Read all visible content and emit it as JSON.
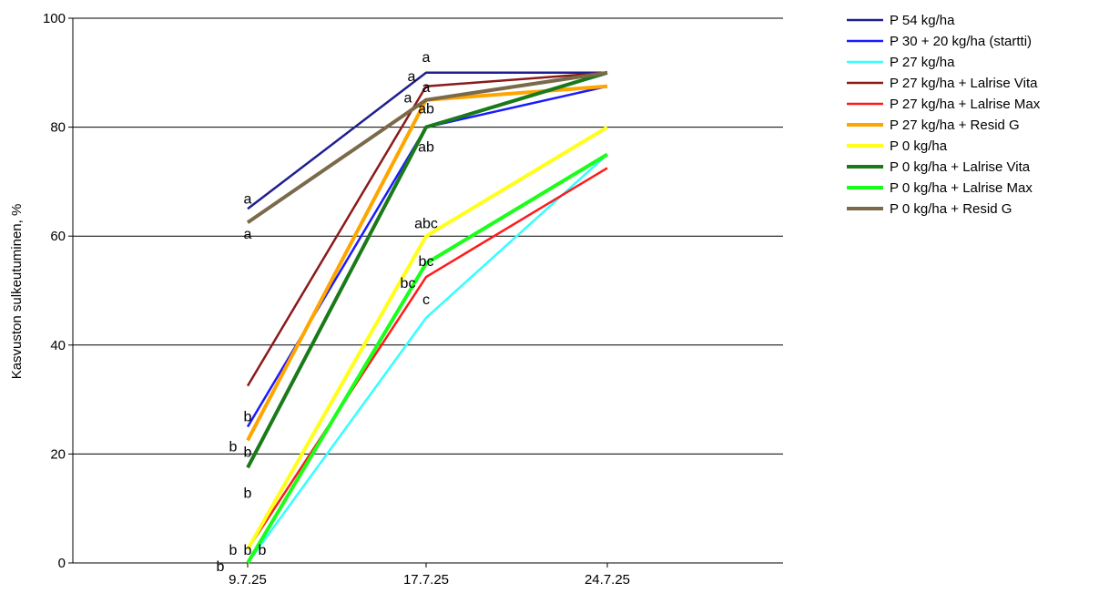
{
  "chart_data": {
    "type": "line",
    "categories": [
      "9.7.25",
      "17.7.25",
      "24.7.25"
    ],
    "ylabel": "Kasvuston sulkeutuminen, %",
    "xlabel": "",
    "ylim": [
      0,
      100
    ],
    "yticks": [
      0,
      20,
      40,
      60,
      80,
      100
    ],
    "grid": true,
    "legend_position": "right",
    "series": [
      {
        "name": "P 54 kg/ha",
        "color": "#1f1f8f",
        "values": [
          65,
          90,
          90
        ]
      },
      {
        "name": "P 30 + 20 kg/ha (startti)",
        "color": "#1a1aff",
        "values": [
          25,
          80,
          87.5
        ]
      },
      {
        "name": "P 27 kg/ha",
        "color": "#33ffff",
        "values": [
          0,
          45,
          75
        ]
      },
      {
        "name": "P 27 kg/ha + Lalrise Vita",
        "color": "#8b1a1a",
        "values": [
          32.5,
          87.5,
          90
        ]
      },
      {
        "name": "P 27 kg/ha + Lalrise Max",
        "color": "#ff1a1a",
        "values": [
          2.5,
          52.5,
          72.5
        ]
      },
      {
        "name": "P 27 kg/ha + Resid G",
        "color": "#ffa500",
        "values": [
          22.5,
          85,
          87.5
        ]
      },
      {
        "name": "P 0 kg/ha",
        "color": "#ffff1a",
        "values": [
          2.5,
          60,
          80
        ]
      },
      {
        "name": "P 0 kg/ha + Lalrise Vita",
        "color": "#1a7a1a",
        "values": [
          17.5,
          80,
          90
        ]
      },
      {
        "name": "P 0 kg/ha + Lalrise Max",
        "color": "#1aff1a",
        "values": [
          0,
          55,
          75
        ]
      },
      {
        "name": "P 0 kg/ha + Resid G",
        "color": "#7a6a4a",
        "values": [
          62.5,
          85,
          90
        ]
      }
    ],
    "annotations": [
      {
        "text": "a",
        "x": "9.7.25",
        "y": 67
      },
      {
        "text": "a",
        "x": "9.7.25",
        "y": 60.5
      },
      {
        "text": "b",
        "x": "9.7.25",
        "y": 27
      },
      {
        "text": "b",
        "x": "9.7.25",
        "y": 21.5
      },
      {
        "text": "b",
        "x": "9.7.25",
        "y": 20.5
      },
      {
        "text": "b",
        "x": "9.7.25",
        "y": 13
      },
      {
        "text": "b",
        "x": "9.7.25",
        "y": 2.5
      },
      {
        "text": "b",
        "x": "9.7.25",
        "y": 2.5
      },
      {
        "text": "b",
        "x": "9.7.25",
        "y": 2.5
      },
      {
        "text": "b",
        "x": "9.7.25",
        "y": -0.5
      },
      {
        "text": "a",
        "x": "17.7.25",
        "y": 93
      },
      {
        "text": "a",
        "x": "17.7.25",
        "y": 89.5
      },
      {
        "text": "a",
        "x": "17.7.25",
        "y": 87.5
      },
      {
        "text": "a",
        "x": "17.7.25",
        "y": 85.5
      },
      {
        "text": "ab",
        "x": "17.7.25",
        "y": 83.5
      },
      {
        "text": "ab",
        "x": "17.7.25",
        "y": 76.5
      },
      {
        "text": "abc",
        "x": "17.7.25",
        "y": 62.5
      },
      {
        "text": "bc",
        "x": "17.7.25",
        "y": 55.5
      },
      {
        "text": "bc",
        "x": "17.7.25",
        "y": 51.5
      },
      {
        "text": "c",
        "x": "17.7.25",
        "y": 48.5
      }
    ]
  }
}
